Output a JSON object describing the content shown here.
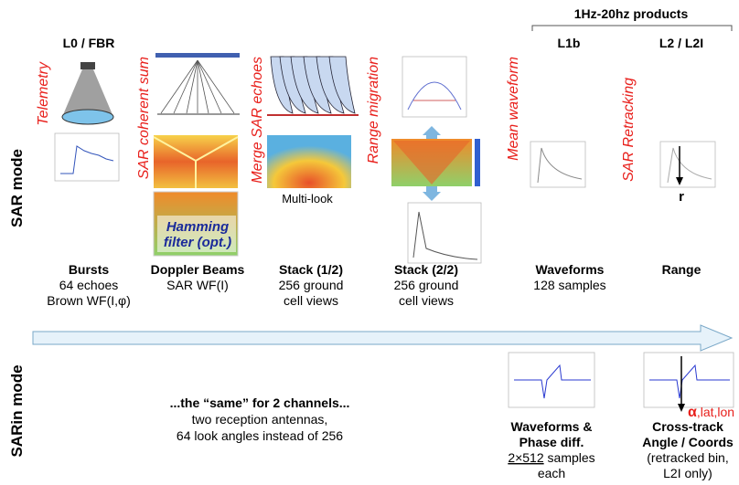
{
  "header": {
    "products": "1Hz-20hz products",
    "levels": [
      "L0 / FBR",
      "L1b",
      "L2 / L2I"
    ]
  },
  "modes": [
    "SAR mode",
    "SARin mode"
  ],
  "sar_steps": [
    {
      "process": "Telemetry",
      "title": "Bursts",
      "detail": [
        "64 echoes",
        "Brown WF(I,φ)"
      ]
    },
    {
      "process": "SAR coherent sum",
      "title": "Doppler Beams",
      "detail": [
        "SAR WF(I)"
      ]
    },
    {
      "process": "Merge SAR echoes",
      "title": "Stack (1/2)",
      "detail": [
        "256 ground",
        "cell views"
      ]
    },
    {
      "process": "Range migration",
      "title": "Stack (2/2)",
      "detail": [
        "256 ground",
        "cell views"
      ]
    },
    {
      "process": "Mean waveform",
      "title": "Waveforms",
      "detail": [
        "128 samples"
      ]
    },
    {
      "process": "SAR Retracking",
      "title": "Range",
      "detail": []
    }
  ],
  "figure_labels": {
    "multilook": "Multi-look",
    "hamming": [
      "Hamming",
      "filter (opt.)"
    ],
    "range_symbol": "r"
  },
  "sarin": {
    "summary": "...the “same” for 2 channels...",
    "detail": [
      "two reception antennas,",
      "64 look angles instead of 256"
    ],
    "outputs": [
      {
        "title": [
          "Waveforms &",
          "Phase diff."
        ],
        "underlined": "2×512",
        "detail": [
          "samples",
          "each"
        ]
      },
      {
        "symbol": "α",
        "symbol_rest": ",lat,lon",
        "title": [
          "Cross-track",
          "Angle / Coords"
        ],
        "detail": [
          "(retracked bin,",
          "L2I only)"
        ]
      }
    ]
  }
}
